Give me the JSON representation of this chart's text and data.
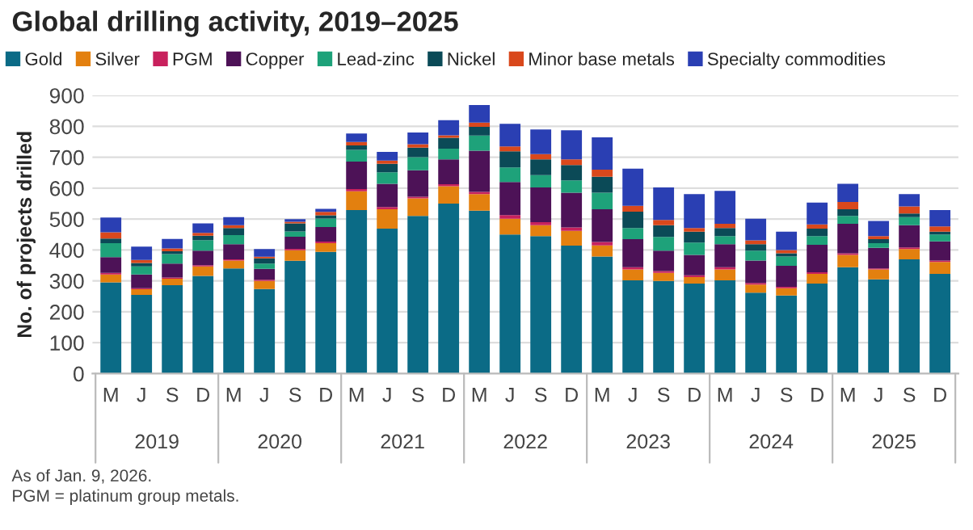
{
  "chart_data": {
    "type": "bar",
    "stacked": true,
    "title": "Global drilling activity, 2019–2025",
    "ylabel": "No. of projects drilled",
    "categories": [
      "M",
      "J",
      "S",
      "D",
      "M",
      "J",
      "S",
      "D",
      "M",
      "J",
      "S",
      "D",
      "M",
      "J",
      "S",
      "D",
      "M",
      "J",
      "S",
      "D",
      "M",
      "J",
      "S",
      "D",
      "M",
      "J",
      "S",
      "D"
    ],
    "series": [
      {
        "name": "Gold",
        "color": "#0b6b86",
        "values": [
          295,
          255,
          286,
          316,
          340,
          274,
          365,
          394,
          529,
          469,
          510,
          550,
          527,
          450,
          445,
          414,
          379,
          302,
          300,
          291,
          302,
          262,
          253,
          291,
          344,
          305,
          370,
          323
        ]
      },
      {
        "name": "Silver",
        "color": "#e3800f",
        "values": [
          26,
          18,
          21,
          31,
          26,
          26,
          34,
          28,
          61,
          63,
          57,
          56,
          54,
          51,
          35,
          48,
          36,
          35,
          26,
          21,
          35,
          26,
          23,
          32,
          40,
          32,
          33,
          38
        ]
      },
      {
        "name": "PGM",
        "color": "#c8215d",
        "values": [
          5,
          3,
          4,
          4,
          4,
          4,
          5,
          5,
          7,
          7,
          5,
          7,
          7,
          12,
          10,
          11,
          11,
          7,
          6,
          6,
          7,
          5,
          5,
          5,
          5,
          3,
          5,
          5
        ]
      },
      {
        "name": "Copper",
        "color": "#4d1257",
        "values": [
          51,
          45,
          45,
          47,
          49,
          35,
          39,
          47,
          89,
          75,
          86,
          80,
          133,
          107,
          112,
          112,
          106,
          91,
          66,
          66,
          75,
          73,
          68,
          89,
          96,
          67,
          72,
          62
        ]
      },
      {
        "name": "Lead-zinc",
        "color": "#1ea27a",
        "values": [
          45,
          26,
          31,
          34,
          29,
          17,
          17,
          28,
          38,
          37,
          42,
          35,
          49,
          47,
          40,
          40,
          53,
          36,
          44,
          40,
          26,
          32,
          30,
          28,
          25,
          15,
          26,
          22
        ]
      },
      {
        "name": "Nickel",
        "color": "#0b4a57",
        "values": [
          15,
          11,
          9,
          14,
          23,
          17,
          26,
          10,
          14,
          28,
          31,
          35,
          28,
          52,
          51,
          50,
          52,
          53,
          38,
          35,
          26,
          21,
          10,
          24,
          22,
          13,
          12,
          9
        ]
      },
      {
        "name": "Minor base metals",
        "color": "#d9481c",
        "values": [
          20,
          10,
          9,
          9,
          9,
          5,
          5,
          11,
          11,
          10,
          11,
          8,
          14,
          16,
          17,
          18,
          23,
          19,
          17,
          12,
          14,
          12,
          11,
          14,
          23,
          10,
          23,
          17
        ]
      },
      {
        "name": "Specialty commodities",
        "color": "#2a3fb3",
        "values": [
          48,
          43,
          31,
          31,
          26,
          25,
          9,
          10,
          28,
          28,
          38,
          49,
          57,
          73,
          80,
          94,
          104,
          120,
          105,
          110,
          106,
          70,
          59,
          70,
          59,
          49,
          40,
          53
        ]
      }
    ],
    "ylim": [
      0,
      900
    ],
    "yticks": [
      0,
      100,
      200,
      300,
      400,
      500,
      600,
      700,
      800,
      900
    ],
    "grid": "y",
    "legend": "top left",
    "annotations": [
      {
        "text": "2019"
      },
      {
        "text": "2020"
      },
      {
        "text": "2021"
      },
      {
        "text": "2022"
      },
      {
        "text": "2023"
      },
      {
        "text": "2024"
      },
      {
        "text": "2025"
      },
      "As of Jan. 9, 2026.",
      "PGM = platinum group metals."
    ]
  }
}
